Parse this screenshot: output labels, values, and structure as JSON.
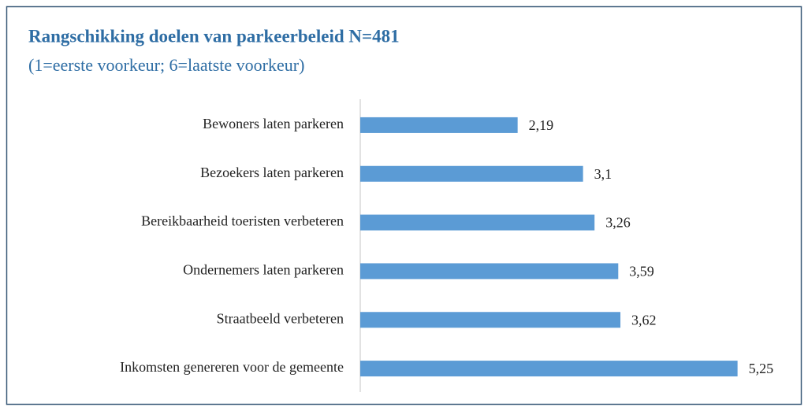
{
  "chart_data": {
    "type": "bar",
    "orientation": "horizontal",
    "title": "Rangschikking doelen van parkeerbeleid N=481",
    "subtitle": "(1=eerste voorkeur; 6=laatste voorkeur)",
    "categories": [
      "Bewoners laten parkeren",
      "Bezoekers laten parkeren",
      "Bereikbaarheid toeristen verbeteren",
      "Ondernemers laten parkeren",
      "Straatbeeld verbeteren",
      "Inkomsten genereren voor de gemeente"
    ],
    "values": [
      2.19,
      3.1,
      3.26,
      3.59,
      3.62,
      5.25
    ],
    "value_labels": [
      "2,19",
      "3,1",
      "3,26",
      "3,59",
      "3,62",
      "5,25"
    ],
    "color": "#5b9bd5",
    "xlim": [
      0,
      6
    ]
  }
}
